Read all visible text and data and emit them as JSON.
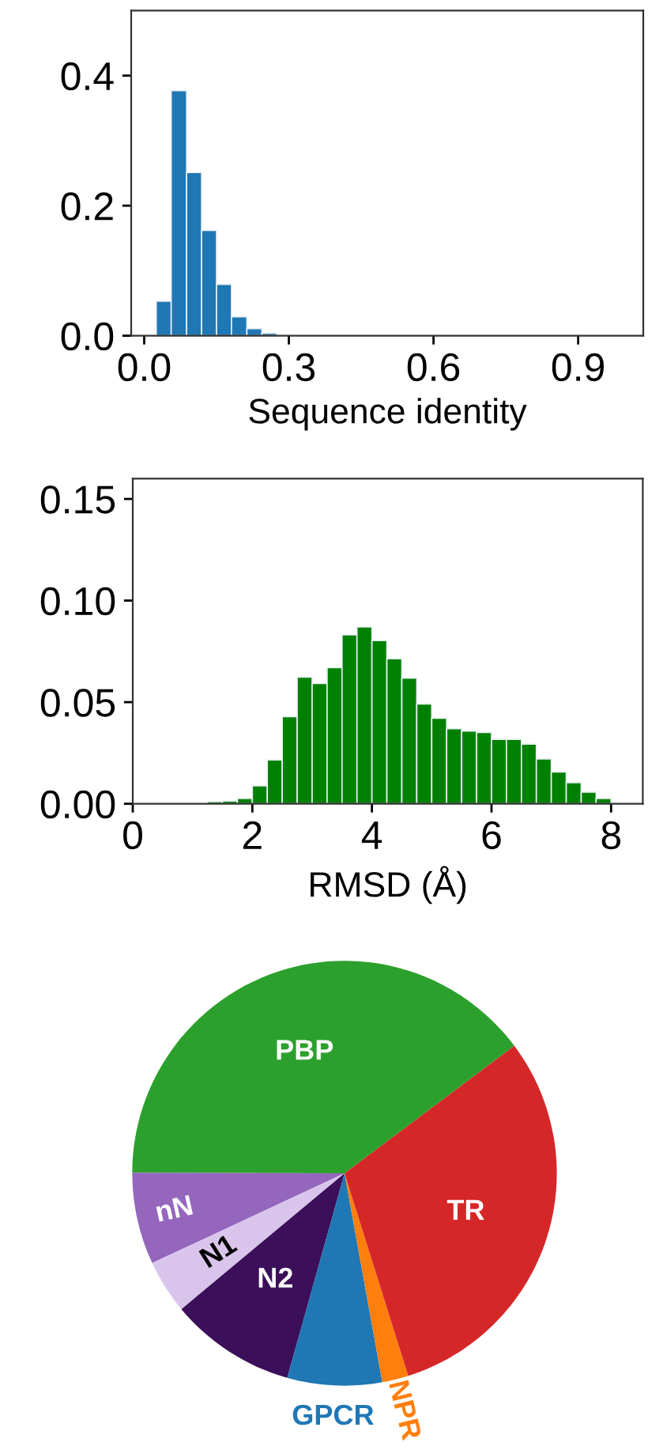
{
  "chart_data": [
    {
      "type": "histogram",
      "xlabel": "Sequence identity",
      "color": "#1f77b4",
      "bins": [
        0.025,
        0.056,
        0.088,
        0.119,
        0.15,
        0.181,
        0.213,
        0.244,
        0.275
      ],
      "values": [
        0.053,
        0.377,
        0.251,
        0.162,
        0.079,
        0.029,
        0.011,
        0.004
      ],
      "xlim": [
        -0.027,
        1.035
      ],
      "ylim": [
        0,
        0.5
      ],
      "xticks": [
        {
          "value": 0,
          "label": "0.0"
        },
        {
          "value": 0.3,
          "label": "0.3"
        },
        {
          "value": 0.6,
          "label": "0.6"
        },
        {
          "value": 0.9,
          "label": "0.9"
        }
      ],
      "yticks": [
        {
          "value": 0,
          "label": "0.0"
        },
        {
          "value": 0.2,
          "label": "0.2"
        },
        {
          "value": 0.4,
          "label": "0.4"
        }
      ],
      "grid": false,
      "legend": false
    },
    {
      "type": "histogram",
      "xlabel": "RMSD (Å)",
      "color": "#008000",
      "bins": [
        1.0,
        1.25,
        1.5,
        1.75,
        2.0,
        2.25,
        2.5,
        2.75,
        3.0,
        3.25,
        3.5,
        3.75,
        4.0,
        4.25,
        4.5,
        4.75,
        5.0,
        5.25,
        5.5,
        5.75,
        6.0,
        6.25,
        6.5,
        6.75,
        7.0,
        7.25,
        7.5,
        7.75,
        8.0
      ],
      "values": [
        null,
        0.001,
        0.0013,
        0.0026,
        0.0088,
        0.0216,
        0.0429,
        0.0623,
        0.0592,
        0.067,
        0.0831,
        0.087,
        0.0803,
        0.0714,
        0.0618,
        0.0491,
        0.0421,
        0.0369,
        0.0358,
        0.0351,
        0.0317,
        0.0317,
        0.0294,
        0.0221,
        0.0156,
        0.0104,
        0.0057,
        0.0026
      ],
      "xlim": [
        0,
        8.53
      ],
      "ylim": [
        0,
        0.16
      ],
      "xticks": [
        0,
        2,
        4,
        6,
        8
      ],
      "yticks": [
        {
          "value": 0,
          "label": "0.00"
        },
        {
          "value": 0.05,
          "label": "0.05"
        },
        {
          "value": 0.1,
          "label": "0.10"
        },
        {
          "value": 0.15,
          "label": "0.15"
        }
      ],
      "grid": false,
      "legend": false
    },
    {
      "type": "pie",
      "categories": [
        "PBP",
        "nN",
        "N1",
        "N2",
        "GPCR",
        "NPR",
        "TR"
      ],
      "values": [
        39.7,
        7.0,
        4.1,
        9.6,
        7.2,
        2.0,
        30.4
      ],
      "colors": [
        "#2ca02c",
        "#9467bd",
        "#d9c5ec",
        "#3b0f5a",
        "#1f77b4",
        "#ff7f0e",
        "#d62728"
      ],
      "legend": false
    }
  ]
}
